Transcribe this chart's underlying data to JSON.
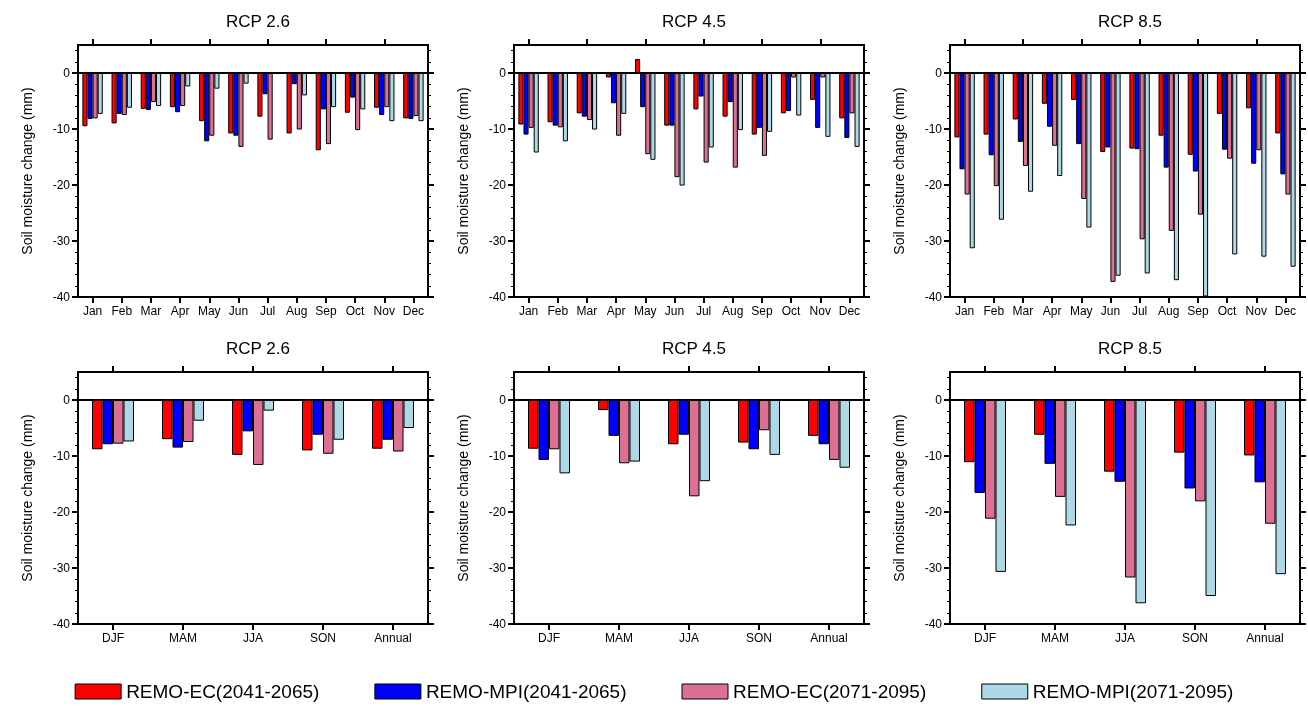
{
  "chart_data": [
    {
      "type": "bar",
      "title": "RCP 2.6",
      "ylabel": "Soil moisture change (mm)",
      "categories": [
        "Jan",
        "Feb",
        "Mar",
        "Apr",
        "May",
        "Jun",
        "Jul",
        "Aug",
        "Sep",
        "Oct",
        "Nov",
        "Dec"
      ],
      "ylim": [
        -40,
        5
      ],
      "yticks": [
        -40,
        -30,
        -20,
        -10,
        0
      ],
      "legend": "bottom",
      "ref_lines": [
        {
          "axis": "y",
          "value": 0,
          "color": "#000000"
        }
      ],
      "series": [
        {
          "name": "REMO-EC(2041-2065)",
          "color": "#ff0000",
          "values": [
            -9.5,
            -9.0,
            -6.4,
            -6.1,
            -8.6,
            -10.8,
            -7.8,
            -10.8,
            -13.8,
            -7.1,
            -6.2,
            -8.1
          ]
        },
        {
          "name": "REMO-MPI(2041-2065)",
          "color": "#0000ff",
          "values": [
            -8.2,
            -7.3,
            -6.6,
            -7.0,
            -12.2,
            -11.2,
            -3.8,
            -2.0,
            -6.5,
            -4.4,
            -7.5,
            -8.2
          ]
        },
        {
          "name": "REMO-EC(2071-2095)",
          "color": "#db7093",
          "values": [
            -8.1,
            -7.5,
            -5.2,
            -5.9,
            -11.2,
            -13.2,
            -11.9,
            -10.1,
            -12.7,
            -10.2,
            -6.1,
            -7.7
          ]
        },
        {
          "name": "REMO-MPI(2071-2095)",
          "color": "#add8e6",
          "values": [
            -7.3,
            -6.2,
            -5.9,
            -2.4,
            -2.8,
            -1.9,
            null,
            -4.0,
            -6.1,
            -6.5,
            -8.6,
            -8.6
          ]
        }
      ]
    },
    {
      "type": "bar",
      "title": "RCP 4.5",
      "ylabel": "Soil moisture change (mm)",
      "categories": [
        "Jan",
        "Feb",
        "Mar",
        "Apr",
        "May",
        "Jun",
        "Jul",
        "Aug",
        "Sep",
        "Oct",
        "Nov",
        "Dec"
      ],
      "ylim": [
        -40,
        5
      ],
      "yticks": [
        -40,
        -30,
        -20,
        -10,
        0
      ],
      "ref_lines": [
        {
          "axis": "y",
          "value": 0,
          "color": "#000000"
        }
      ],
      "series": [
        {
          "color": "#ff0000",
          "values": [
            -9.2,
            -8.8,
            -7.2,
            -0.8,
            2.5,
            -9.4,
            -6.5,
            -7.8,
            -11.0,
            -7.2,
            -4.8,
            -8.1
          ]
        },
        {
          "color": "#0000ff",
          "values": [
            -11.0,
            -9.4,
            -7.8,
            -5.4,
            -6.1,
            -9.4,
            -4.2,
            -5.2,
            -9.8,
            -6.8,
            -9.8,
            -11.6
          ]
        },
        {
          "color": "#db7093",
          "values": [
            -9.8,
            -9.7,
            -8.4,
            -11.2,
            -14.5,
            -18.6,
            -16.0,
            -16.9,
            -14.8,
            -0.8,
            -0.8,
            -7.2
          ]
        },
        {
          "color": "#add8e6",
          "values": [
            -14.2,
            -12.2,
            -10.1,
            -7.3,
            -15.5,
            -20.1,
            -13.3,
            -10.2,
            -10.5,
            -7.6,
            -11.4,
            -13.2
          ]
        }
      ]
    },
    {
      "type": "bar",
      "title": "RCP 8.5",
      "ylabel": "Soil moisture change (mm)",
      "categories": [
        "Jan",
        "Feb",
        "Mar",
        "Apr",
        "May",
        "Jun",
        "Jul",
        "Aug",
        "Sep",
        "Oct",
        "Nov",
        "Dec"
      ],
      "ylim": [
        -40,
        5
      ],
      "yticks": [
        -40,
        -30,
        -20,
        -10,
        0
      ],
      "ref_lines": [
        {
          "axis": "y",
          "value": 0,
          "color": "#000000"
        }
      ],
      "series": [
        {
          "color": "#ff0000",
          "values": [
            -11.5,
            -11.0,
            -8.3,
            -5.5,
            -4.8,
            -14.1,
            -13.5,
            -11.2,
            -14.6,
            -7.3,
            -6.3,
            -10.8
          ]
        },
        {
          "color": "#0000ff",
          "values": [
            -17.2,
            -14.7,
            -12.3,
            -9.6,
            -12.7,
            -13.3,
            -13.6,
            -16.9,
            -17.6,
            -13.7,
            -16.2,
            -18.1
          ]
        },
        {
          "color": "#db7093",
          "values": [
            -21.7,
            -20.2,
            -16.6,
            -13.0,
            -22.5,
            -37.3,
            -29.7,
            -28.2,
            -25.3,
            -15.3,
            -13.8,
            -21.7
          ]
        },
        {
          "color": "#add8e6",
          "values": [
            -31.3,
            -26.2,
            -21.2,
            -18.4,
            -27.6,
            -36.2,
            -35.8,
            -37.0,
            -39.9,
            -32.4,
            -32.8,
            -34.6
          ]
        }
      ]
    },
    {
      "type": "bar",
      "title": "RCP 2.6",
      "ylabel": "Soil moisture change (mm)",
      "categories": [
        "DJF",
        "MAM",
        "JJA",
        "SON",
        "Annual"
      ],
      "ylim": [
        -40,
        5
      ],
      "yticks": [
        -40,
        -30,
        -20,
        -10,
        0
      ],
      "ref_lines": [
        {
          "axis": "y",
          "value": 0,
          "color": "#000000"
        }
      ],
      "series": [
        {
          "color": "#ff0000",
          "values": [
            -8.8,
            -7.0,
            -9.8,
            -9.0,
            -8.7
          ]
        },
        {
          "color": "#0000ff",
          "values": [
            -7.9,
            -8.5,
            -5.6,
            -6.2,
            -7.1
          ]
        },
        {
          "color": "#db7093",
          "values": [
            -7.8,
            -7.5,
            -11.6,
            -9.6,
            -9.2
          ]
        },
        {
          "color": "#add8e6",
          "values": [
            -7.4,
            -3.7,
            -1.9,
            -7.1,
            -5.0
          ]
        }
      ]
    },
    {
      "type": "bar",
      "title": "RCP 4.5",
      "ylabel": "Soil moisture change (mm)",
      "categories": [
        "DJF",
        "MAM",
        "JJA",
        "SON",
        "Annual"
      ],
      "ylim": [
        -40,
        5
      ],
      "yticks": [
        -40,
        -30,
        -20,
        -10,
        0
      ],
      "ref_lines": [
        {
          "axis": "y",
          "value": 0,
          "color": "#000000"
        }
      ],
      "series": [
        {
          "color": "#ff0000",
          "values": [
            -8.7,
            -1.8,
            -7.9,
            -7.6,
            -6.4
          ]
        },
        {
          "color": "#0000ff",
          "values": [
            -10.7,
            -6.4,
            -6.2,
            -8.8,
            -7.9
          ]
        },
        {
          "color": "#db7093",
          "values": [
            -8.8,
            -11.3,
            -17.2,
            -5.4,
            -10.7
          ]
        },
        {
          "color": "#add8e6",
          "values": [
            -13.1,
            -11.0,
            -14.5,
            -9.8,
            -12.1
          ]
        }
      ]
    },
    {
      "type": "bar",
      "title": "RCP 8.5",
      "ylabel": "Soil moisture change (mm)",
      "categories": [
        "DJF",
        "MAM",
        "JJA",
        "SON",
        "Annual"
      ],
      "ylim": [
        -40,
        5
      ],
      "yticks": [
        -40,
        -30,
        -20,
        -10,
        0
      ],
      "ref_lines": [
        {
          "axis": "y",
          "value": 0,
          "color": "#000000"
        }
      ],
      "series": [
        {
          "color": "#ff0000",
          "values": [
            -11.1,
            -6.2,
            -12.8,
            -9.4,
            -9.9
          ]
        },
        {
          "color": "#0000ff",
          "values": [
            -16.6,
            -11.4,
            -14.6,
            -15.8,
            -14.7
          ]
        },
        {
          "color": "#db7093",
          "values": [
            -21.2,
            -17.3,
            -31.7,
            -18.1,
            -22.1
          ]
        },
        {
          "color": "#add8e6",
          "values": [
            -30.7,
            -22.4,
            -36.3,
            -35.0,
            -31.1
          ]
        }
      ]
    }
  ]
}
